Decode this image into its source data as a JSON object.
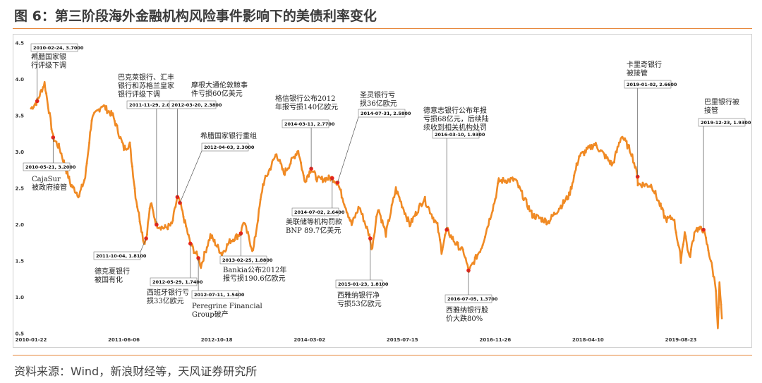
{
  "header": {
    "title": "图 6：第三阶段海外金融机构风险事件影响下的美债利率变化"
  },
  "footer": {
    "source": "资料来源：Wind，新浪财经等，天风证券研究所"
  },
  "chart_data": {
    "type": "line",
    "colors": {
      "line": "#f08a24",
      "marker": "#e8231a"
    },
    "ylim": [
      0.5,
      4.5
    ],
    "y_ticks": [
      "0.5",
      "1.0",
      "1.5",
      "2.0",
      "2.5",
      "3.0",
      "3.5",
      "4.0",
      "4.5"
    ],
    "x_range": [
      "2010-01-22",
      "2020-03-31"
    ],
    "x_ticks": [
      "2010-01-22",
      "2011-06-06",
      "2012-10-18",
      "2014-03-02",
      "2015-07-15",
      "2016-11-26",
      "2018-04-10",
      "2019-08-23"
    ],
    "series": [
      {
        "values": [
          [
            "2010-01-22",
            3.6
          ],
          [
            "2010-02-24",
            3.7
          ],
          [
            "2010-04-05",
            3.95
          ],
          [
            "2010-05-21",
            3.2
          ],
          [
            "2010-06-25",
            3.05
          ],
          [
            "2010-08-24",
            2.55
          ],
          [
            "2010-10-08",
            2.4
          ],
          [
            "2010-11-10",
            2.65
          ],
          [
            "2010-12-15",
            3.45
          ],
          [
            "2011-02-09",
            3.65
          ],
          [
            "2011-04-08",
            3.5
          ],
          [
            "2011-06-06",
            3.05
          ],
          [
            "2011-07-08",
            3.1
          ],
          [
            "2011-08-08",
            2.4
          ],
          [
            "2011-09-22",
            1.75
          ],
          [
            "2011-10-04",
            1.81
          ],
          [
            "2011-10-28",
            2.3
          ],
          [
            "2011-11-29",
            2.0
          ],
          [
            "2012-01-10",
            1.95
          ],
          [
            "2012-02-20",
            2.0
          ],
          [
            "2012-03-20",
            2.38
          ],
          [
            "2012-04-03",
            2.3
          ],
          [
            "2012-05-29",
            1.74
          ],
          [
            "2012-07-11",
            1.54
          ],
          [
            "2012-07-25",
            1.43
          ],
          [
            "2012-09-14",
            1.85
          ],
          [
            "2012-11-15",
            1.6
          ],
          [
            "2012-12-31",
            1.78
          ],
          [
            "2013-02-25",
            1.88
          ],
          [
            "2013-03-11",
            2.05
          ],
          [
            "2013-05-02",
            1.63
          ],
          [
            "2013-06-24",
            2.55
          ],
          [
            "2013-09-05",
            2.98
          ],
          [
            "2013-10-15",
            2.7
          ],
          [
            "2013-12-31",
            3.03
          ],
          [
            "2014-02-03",
            2.6
          ],
          [
            "2014-03-11",
            2.77
          ],
          [
            "2014-04-15",
            2.62
          ],
          [
            "2014-07-02",
            2.64
          ],
          [
            "2014-07-31",
            2.58
          ],
          [
            "2014-10-15",
            2.0
          ],
          [
            "2014-11-25",
            2.25
          ],
          [
            "2015-01-23",
            1.81
          ],
          [
            "2015-01-30",
            1.64
          ],
          [
            "2015-03-06",
            2.24
          ],
          [
            "2015-04-17",
            1.87
          ],
          [
            "2015-06-10",
            2.49
          ],
          [
            "2015-08-24",
            2.0
          ],
          [
            "2015-11-09",
            2.36
          ],
          [
            "2016-01-20",
            1.98
          ],
          [
            "2016-02-11",
            1.64
          ],
          [
            "2016-03-10",
            1.93
          ],
          [
            "2016-04-25",
            1.75
          ],
          [
            "2016-06-10",
            1.62
          ],
          [
            "2016-07-05",
            1.37
          ],
          [
            "2016-07-08",
            1.36
          ],
          [
            "2016-09-15",
            1.7
          ],
          [
            "2016-11-26",
            2.35
          ],
          [
            "2016-12-15",
            2.6
          ],
          [
            "2017-03-13",
            2.62
          ],
          [
            "2017-06-14",
            2.13
          ],
          [
            "2017-09-08",
            2.04
          ],
          [
            "2017-12-29",
            2.4
          ],
          [
            "2018-02-21",
            2.94
          ],
          [
            "2018-05-17",
            3.11
          ],
          [
            "2018-08-20",
            2.82
          ],
          [
            "2018-10-08",
            3.23
          ],
          [
            "2018-11-30",
            2.99
          ],
          [
            "2019-01-02",
            2.66
          ],
          [
            "2019-01-03",
            2.56
          ],
          [
            "2019-03-20",
            2.54
          ],
          [
            "2019-06-03",
            2.07
          ],
          [
            "2019-07-15",
            2.1
          ],
          [
            "2019-08-23",
            1.52
          ],
          [
            "2019-09-13",
            1.9
          ],
          [
            "2019-10-08",
            1.53
          ],
          [
            "2019-11-08",
            1.94
          ],
          [
            "2019-12-23",
            1.93
          ],
          [
            "2020-01-31",
            1.51
          ],
          [
            "2020-02-28",
            1.13
          ],
          [
            "2020-03-09",
            0.54
          ],
          [
            "2020-03-18",
            1.18
          ],
          [
            "2020-03-31",
            0.7
          ]
        ]
      }
    ],
    "annotations": [
      {
        "date": "2010-02-24",
        "value": 3.7,
        "box": "2010-02-24, 3.7000",
        "note": [
          "希腊国家银",
          "行评级下调"
        ]
      },
      {
        "date": "2010-05-21",
        "value": 3.2,
        "box": "2010-05-21, 3.2000",
        "note": [
          "CajaSur",
          "被政府接管"
        ]
      },
      {
        "date": "2011-10-04",
        "value": 1.81,
        "box": "2011-10-04, 1.8100",
        "note": [
          "德克夏银行",
          "被国有化"
        ]
      },
      {
        "date": "2011-11-29",
        "value": 2.0,
        "box": "2011-11-29, 2.0000",
        "note": [
          "巴克莱银行、汇丰",
          "银行和苏格兰皇家",
          "银行评级下调"
        ]
      },
      {
        "date": "2012-03-20",
        "value": 2.38,
        "box": "2012-03-20, 2.3800",
        "note": [
          "摩根大通伦敦鲸事",
          "件亏损60亿美元"
        ]
      },
      {
        "date": "2012-04-03",
        "value": 2.3,
        "box": "2012-04-03, 2.3000",
        "note": [
          "希腊国家银行重组"
        ]
      },
      {
        "date": "2012-05-29",
        "value": 1.74,
        "box": "2012-05-29, 1.7400",
        "note": [
          "西班牙银行亏",
          "损33亿欧元"
        ]
      },
      {
        "date": "2012-07-11",
        "value": 1.54,
        "box": "2012-07-11, 1.5400",
        "note": [
          "Peregrine Financial",
          "Group破产"
        ]
      },
      {
        "date": "2013-02-25",
        "value": 1.88,
        "box": "2013-02-25, 1.8800",
        "note": [
          "Bankia公布2012年",
          "报亏损190.6亿欧元"
        ]
      },
      {
        "date": "2014-03-11",
        "value": 2.77,
        "box": "2014-03-11, 2.7700",
        "note": [
          "格信银行公布2012",
          "年报亏损140亿欧元"
        ]
      },
      {
        "date": "2014-07-02",
        "value": 2.64,
        "box": "2014-07-02, 2.6400",
        "note": [
          "美联储等机构罚款",
          "BNP 89.7亿美元"
        ]
      },
      {
        "date": "2014-07-31",
        "value": 2.58,
        "box": "2014-07-31, 2.5800",
        "note": [
          "圣灵银行亏",
          "损36亿欧元"
        ]
      },
      {
        "date": "2015-01-23",
        "value": 1.81,
        "box": "2015-01-23, 1.8100",
        "note": [
          "西雅纳银行净",
          "亏损53亿欧元"
        ]
      },
      {
        "date": "2016-03-10",
        "value": 1.93,
        "box": "2016-03-10, 1.9300",
        "note": [
          "德意志银行公布年报",
          "亏损68亿元，后续陆",
          "续收到相关机构处罚"
        ]
      },
      {
        "date": "2016-07-05",
        "value": 1.37,
        "box": "2016-07-05, 1.3700",
        "note": [
          "西雅纳银行股",
          "价大跌80%"
        ]
      },
      {
        "date": "2019-01-02",
        "value": 2.66,
        "box": "2019-01-02, 2.6600",
        "note": [
          "卡里奇银行",
          "被接管"
        ]
      },
      {
        "date": "2019-12-23",
        "value": 1.93,
        "box": "2019-12-23, 1.9300",
        "note": [
          "巴里银行被",
          "接管"
        ]
      }
    ]
  }
}
